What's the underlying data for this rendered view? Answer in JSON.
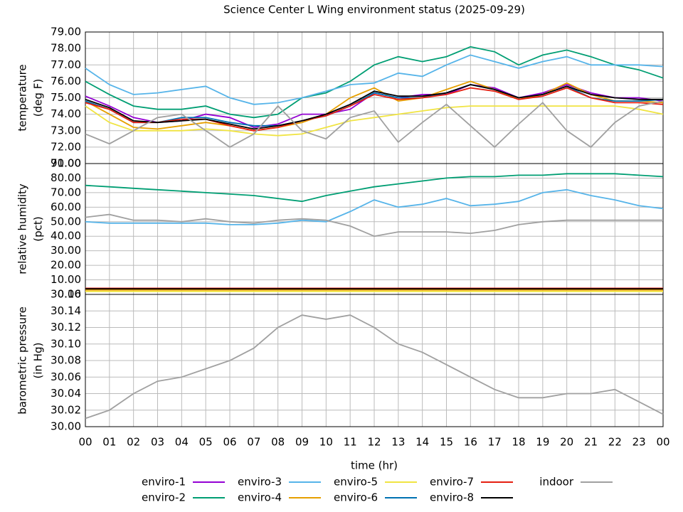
{
  "chart_data": [
    {
      "type": "line",
      "title": "Science Center L Wing environment status (2025-09-29)",
      "ylabel": [
        "temperature",
        "(deg F)"
      ],
      "x": [
        0,
        1,
        2,
        3,
        4,
        5,
        6,
        7,
        8,
        9,
        10,
        11,
        12,
        13,
        14,
        15,
        16,
        17,
        18,
        19,
        20,
        21,
        22,
        23,
        24
      ],
      "ylim": [
        71,
        79
      ],
      "yticks": [
        {
          "value": 71,
          "label": "71.00"
        },
        {
          "value": 72,
          "label": "72.00"
        },
        {
          "value": 73,
          "label": "73.00"
        },
        {
          "value": 74,
          "label": "74.00"
        },
        {
          "value": 75,
          "label": "75.00"
        },
        {
          "value": 76,
          "label": "76.00"
        },
        {
          "value": 77,
          "label": "77.00"
        },
        {
          "value": 78,
          "label": "78.00"
        },
        {
          "value": 79,
          "label": "79.00"
        }
      ],
      "grid": true,
      "series": [
        {
          "name": "enviro-1",
          "color": "#9400d3",
          "values": [
            75.1,
            74.5,
            73.8,
            73.5,
            73.6,
            74.0,
            73.8,
            73.2,
            73.4,
            74.0,
            74.0,
            74.3,
            75.3,
            75.0,
            75.2,
            75.2,
            75.8,
            75.6,
            75.0,
            75.3,
            75.8,
            75.3,
            75.0,
            75.0,
            74.8
          ]
        },
        {
          "name": "enviro-2",
          "color": "#009e73",
          "values": [
            76.0,
            75.2,
            74.5,
            74.3,
            74.3,
            74.5,
            74.0,
            73.8,
            74.0,
            75.0,
            75.3,
            76.0,
            77.0,
            77.5,
            77.2,
            77.5,
            78.1,
            77.8,
            77.0,
            77.6,
            77.9,
            77.5,
            77.0,
            76.7,
            76.2
          ]
        },
        {
          "name": "enviro-3",
          "color": "#56b4e9",
          "values": [
            76.8,
            75.8,
            75.2,
            75.3,
            75.5,
            75.7,
            75.0,
            74.6,
            74.7,
            75.0,
            75.4,
            75.8,
            75.9,
            76.5,
            76.3,
            77.0,
            77.6,
            77.2,
            76.8,
            77.2,
            77.5,
            77.0,
            77.0,
            77.0,
            76.9
          ]
        },
        {
          "name": "enviro-4",
          "color": "#e69f00",
          "values": [
            74.8,
            74.0,
            73.2,
            73.1,
            73.3,
            73.5,
            73.3,
            73.0,
            73.2,
            73.5,
            74.0,
            75.0,
            75.6,
            74.8,
            75.0,
            75.5,
            76.0,
            75.5,
            74.9,
            75.2,
            75.9,
            75.2,
            74.8,
            74.8,
            74.7
          ]
        },
        {
          "name": "enviro-5",
          "color": "#f0e442",
          "values": [
            74.5,
            73.5,
            73.0,
            73.0,
            73.0,
            73.1,
            73.0,
            72.8,
            72.7,
            72.8,
            73.2,
            73.6,
            73.8,
            74.0,
            74.2,
            74.4,
            74.5,
            74.5,
            74.5,
            74.5,
            74.5,
            74.5,
            74.5,
            74.3,
            74.0
          ]
        },
        {
          "name": "enviro-6",
          "color": "#0072b2",
          "values": [
            74.8,
            74.3,
            73.5,
            73.5,
            73.8,
            73.8,
            73.5,
            73.3,
            73.3,
            73.6,
            73.9,
            74.5,
            75.3,
            75.0,
            75.0,
            75.3,
            75.8,
            75.5,
            75.0,
            75.2,
            75.7,
            75.0,
            74.8,
            74.8,
            74.9
          ]
        },
        {
          "name": "enviro-7",
          "color": "#e51e10",
          "values": [
            74.7,
            74.3,
            73.5,
            73.5,
            73.7,
            73.7,
            73.3,
            73.0,
            73.2,
            73.6,
            73.9,
            74.5,
            75.2,
            74.9,
            75.0,
            75.2,
            75.6,
            75.4,
            74.9,
            75.1,
            75.6,
            75.0,
            74.7,
            74.7,
            74.6
          ]
        },
        {
          "name": "enviro-8",
          "color": "#000000",
          "values": [
            74.9,
            74.4,
            73.6,
            73.5,
            73.6,
            73.7,
            73.4,
            73.1,
            73.3,
            73.6,
            74.0,
            74.6,
            75.4,
            75.1,
            75.1,
            75.3,
            75.8,
            75.5,
            75.0,
            75.2,
            75.7,
            75.2,
            75.0,
            74.9,
            74.9
          ]
        },
        {
          "name": "indoor",
          "color": "#a0a0a0",
          "values": [
            72.8,
            72.2,
            73.0,
            73.8,
            74.0,
            73.0,
            72.0,
            72.8,
            74.5,
            73.0,
            72.5,
            73.8,
            74.2,
            72.3,
            73.5,
            74.6,
            73.3,
            72.0,
            73.4,
            74.7,
            73.0,
            72.0,
            73.5,
            74.5,
            74.8
          ]
        }
      ]
    },
    {
      "type": "line",
      "ylabel": [
        "relative humidity",
        "(pct)"
      ],
      "x": [
        0,
        1,
        2,
        3,
        4,
        5,
        6,
        7,
        8,
        9,
        10,
        11,
        12,
        13,
        14,
        15,
        16,
        17,
        18,
        19,
        20,
        21,
        22,
        23,
        24
      ],
      "ylim": [
        0,
        90
      ],
      "yticks": [
        {
          "value": 0,
          "label": "0.00"
        },
        {
          "value": 10,
          "label": "10.00"
        },
        {
          "value": 20,
          "label": "20.00"
        },
        {
          "value": 30,
          "label": "30.00"
        },
        {
          "value": 40,
          "label": "40.00"
        },
        {
          "value": 50,
          "label": "50.00"
        },
        {
          "value": 60,
          "label": "60.00"
        },
        {
          "value": 70,
          "label": "70.00"
        },
        {
          "value": 80,
          "label": "80.00"
        },
        {
          "value": 90,
          "label": "90.00"
        }
      ],
      "grid": true,
      "series": [
        {
          "name": "enviro-1",
          "color": "#9400d3",
          "values": [
            3.5,
            3.5,
            3.5,
            3.5,
            3.5,
            3.5,
            3.5,
            3.5,
            3.5,
            3.5,
            3.5,
            3.5,
            3.5,
            3.5,
            3.5,
            3.5,
            3.5,
            3.5,
            3.5,
            3.5,
            3.5,
            3.5,
            3.5,
            3.5,
            3.5
          ]
        },
        {
          "name": "enviro-2",
          "color": "#009e73",
          "values": [
            75,
            74,
            73,
            72,
            71,
            70,
            69,
            68,
            66,
            64,
            68,
            71,
            74,
            76,
            78,
            80,
            81,
            81,
            82,
            82,
            83,
            83,
            83,
            82,
            81
          ]
        },
        {
          "name": "enviro-3",
          "color": "#56b4e9",
          "values": [
            50,
            49,
            49,
            49,
            49,
            49,
            48,
            48,
            49,
            51,
            50,
            57,
            65,
            60,
            62,
            66,
            61,
            62,
            64,
            70,
            72,
            68,
            65,
            61,
            59
          ]
        },
        {
          "name": "enviro-4",
          "color": "#e69f00",
          "values": [
            3,
            3,
            3,
            3,
            3,
            3,
            3,
            3,
            3,
            3,
            3,
            3,
            3,
            3,
            3,
            3,
            3,
            3,
            3,
            3,
            3,
            3,
            3,
            3,
            3
          ]
        },
        {
          "name": "enviro-5",
          "color": "#f0e442",
          "values": [
            2,
            2,
            2,
            2,
            2,
            2,
            2,
            2,
            2,
            2,
            2,
            2,
            2,
            2,
            2,
            2,
            2,
            2,
            2,
            2,
            2,
            2,
            2,
            2,
            2
          ]
        },
        {
          "name": "enviro-6",
          "color": "#0072b2",
          "values": [
            4,
            4,
            4,
            4,
            4,
            4,
            4,
            4,
            4,
            4,
            4,
            4,
            4,
            4,
            4,
            4,
            4,
            4,
            4,
            4,
            4,
            4,
            4,
            4,
            4
          ]
        },
        {
          "name": "enviro-7",
          "color": "#e51e10",
          "values": [
            4.2,
            4.2,
            4.2,
            4.2,
            4.2,
            4.2,
            4.2,
            4.2,
            4.2,
            4.2,
            4.2,
            4.2,
            4.2,
            4.2,
            4.2,
            4.2,
            4.2,
            4.2,
            4.2,
            4.2,
            4.2,
            4.2,
            4.2,
            4.2,
            4.2
          ]
        },
        {
          "name": "enviro-8",
          "color": "#000000",
          "values": [
            3.8,
            3.8,
            3.8,
            3.8,
            3.8,
            3.8,
            3.8,
            3.8,
            3.8,
            3.8,
            3.8,
            3.8,
            3.8,
            3.8,
            3.8,
            3.8,
            3.8,
            3.8,
            3.8,
            3.8,
            3.8,
            3.8,
            3.8,
            3.8,
            3.8
          ]
        },
        {
          "name": "indoor",
          "color": "#a0a0a0",
          "values": [
            53,
            55,
            51,
            51,
            50,
            52,
            50,
            49,
            51,
            52,
            51,
            47,
            40,
            43,
            43,
            43,
            42,
            44,
            48,
            50,
            51,
            51,
            51,
            51,
            51
          ]
        }
      ]
    },
    {
      "type": "line",
      "ylabel": [
        "barometric pressure",
        "(in Hg)"
      ],
      "xlabel": "time (hr)",
      "x": [
        0,
        1,
        2,
        3,
        4,
        5,
        6,
        7,
        8,
        9,
        10,
        11,
        12,
        13,
        14,
        15,
        16,
        17,
        18,
        19,
        20,
        21,
        22,
        23,
        24
      ],
      "xlim": [
        0,
        24
      ],
      "xticks": [
        {
          "value": 0,
          "label": "00"
        },
        {
          "value": 1,
          "label": "01"
        },
        {
          "value": 2,
          "label": "02"
        },
        {
          "value": 3,
          "label": "03"
        },
        {
          "value": 4,
          "label": "04"
        },
        {
          "value": 5,
          "label": "05"
        },
        {
          "value": 6,
          "label": "06"
        },
        {
          "value": 7,
          "label": "07"
        },
        {
          "value": 8,
          "label": "08"
        },
        {
          "value": 9,
          "label": "09"
        },
        10,
        11,
        12,
        13,
        14,
        15,
        16,
        17,
        18,
        19,
        20,
        21,
        22,
        23,
        {
          "value": 24,
          "label": "00"
        }
      ],
      "ylim": [
        30.0,
        30.16
      ],
      "yticks": [
        {
          "value": 30.0,
          "label": "30.00"
        },
        {
          "value": 30.02,
          "label": "30.02"
        },
        {
          "value": 30.04,
          "label": "30.04"
        },
        {
          "value": 30.06,
          "label": "30.06"
        },
        {
          "value": 30.08,
          "label": "30.08"
        },
        {
          "value": 30.1,
          "label": "30.10"
        },
        {
          "value": 30.12,
          "label": "30.12"
        },
        {
          "value": 30.14,
          "label": "30.14"
        },
        {
          "value": 30.16,
          "label": "30.16"
        }
      ],
      "grid": true,
      "series": [
        {
          "name": "indoor",
          "color": "#a0a0a0",
          "values": [
            30.01,
            30.02,
            30.04,
            30.055,
            30.06,
            30.07,
            30.08,
            30.095,
            30.12,
            30.135,
            30.13,
            30.135,
            30.12,
            30.1,
            30.09,
            30.075,
            30.06,
            30.045,
            30.035,
            30.035,
            30.04,
            30.04,
            30.045,
            30.03,
            30.015
          ]
        }
      ]
    }
  ]
}
